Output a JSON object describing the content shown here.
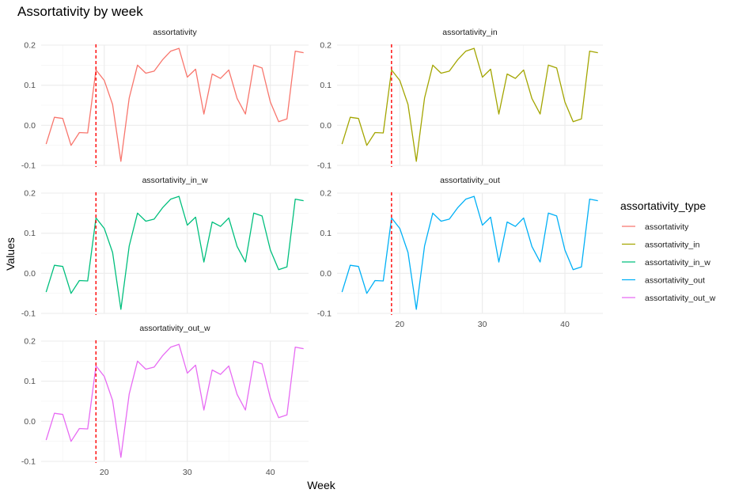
{
  "chart_data": {
    "type": "line",
    "title": "Assortativity by week",
    "xlabel": "Week",
    "ylabel": "Values",
    "xlim": [
      12.4,
      44.6
    ],
    "ylim": [
      -0.1,
      0.2
    ],
    "x_ticks": [
      20,
      30,
      40
    ],
    "y_ticks": [
      -0.1,
      0.0,
      0.1,
      0.2
    ],
    "y_tick_labels": [
      "-0.1",
      "0.0",
      "0.1",
      "0.2"
    ],
    "vline_x": 19,
    "vline_color": "#ff0000",
    "grid": true,
    "legend_title": "assortativity_type",
    "legend_position": "right",
    "x": [
      13,
      14,
      15,
      16,
      17,
      18,
      19,
      20,
      21,
      22,
      23,
      24,
      25,
      26,
      27,
      28,
      29,
      30,
      31,
      32,
      33,
      34,
      35,
      36,
      37,
      38,
      39,
      40,
      41,
      42,
      43,
      44
    ],
    "series": [
      {
        "name": "assortativity",
        "color": "#F8766D",
        "values": [
          -0.047,
          0.02,
          0.017,
          -0.05,
          -0.018,
          -0.019,
          0.138,
          0.112,
          0.052,
          -0.09,
          0.068,
          0.15,
          0.13,
          0.135,
          0.163,
          0.185,
          0.192,
          0.12,
          0.14,
          0.028,
          0.128,
          0.117,
          0.138,
          0.067,
          0.028,
          0.15,
          0.143,
          0.058,
          0.009,
          0.016,
          0.185,
          0.181
        ]
      },
      {
        "name": "assortativity_in",
        "color": "#A3A500",
        "values": [
          -0.047,
          0.02,
          0.017,
          -0.05,
          -0.018,
          -0.019,
          0.138,
          0.112,
          0.052,
          -0.09,
          0.068,
          0.15,
          0.13,
          0.135,
          0.163,
          0.185,
          0.192,
          0.12,
          0.14,
          0.028,
          0.128,
          0.117,
          0.138,
          0.067,
          0.028,
          0.15,
          0.143,
          0.058,
          0.009,
          0.016,
          0.185,
          0.181
        ]
      },
      {
        "name": "assortativity_in_w",
        "color": "#00BF7D",
        "values": [
          -0.047,
          0.02,
          0.017,
          -0.05,
          -0.018,
          -0.019,
          0.138,
          0.112,
          0.052,
          -0.09,
          0.068,
          0.15,
          0.13,
          0.135,
          0.163,
          0.185,
          0.192,
          0.12,
          0.14,
          0.028,
          0.128,
          0.117,
          0.138,
          0.067,
          0.028,
          0.15,
          0.143,
          0.058,
          0.009,
          0.016,
          0.185,
          0.181
        ]
      },
      {
        "name": "assortativity_out",
        "color": "#00B0F6",
        "values": [
          -0.047,
          0.02,
          0.017,
          -0.05,
          -0.018,
          -0.019,
          0.138,
          0.112,
          0.052,
          -0.09,
          0.068,
          0.15,
          0.13,
          0.135,
          0.163,
          0.185,
          0.192,
          0.12,
          0.14,
          0.028,
          0.128,
          0.117,
          0.138,
          0.067,
          0.028,
          0.15,
          0.143,
          0.058,
          0.009,
          0.016,
          0.185,
          0.181
        ]
      },
      {
        "name": "assortativity_out_w",
        "color": "#E76BF3",
        "values": [
          -0.047,
          0.02,
          0.017,
          -0.05,
          -0.018,
          -0.019,
          0.138,
          0.112,
          0.052,
          -0.09,
          0.068,
          0.15,
          0.13,
          0.135,
          0.163,
          0.185,
          0.192,
          0.12,
          0.14,
          0.028,
          0.128,
          0.117,
          0.138,
          0.067,
          0.028,
          0.15,
          0.143,
          0.058,
          0.009,
          0.016,
          0.185,
          0.181
        ]
      }
    ]
  }
}
